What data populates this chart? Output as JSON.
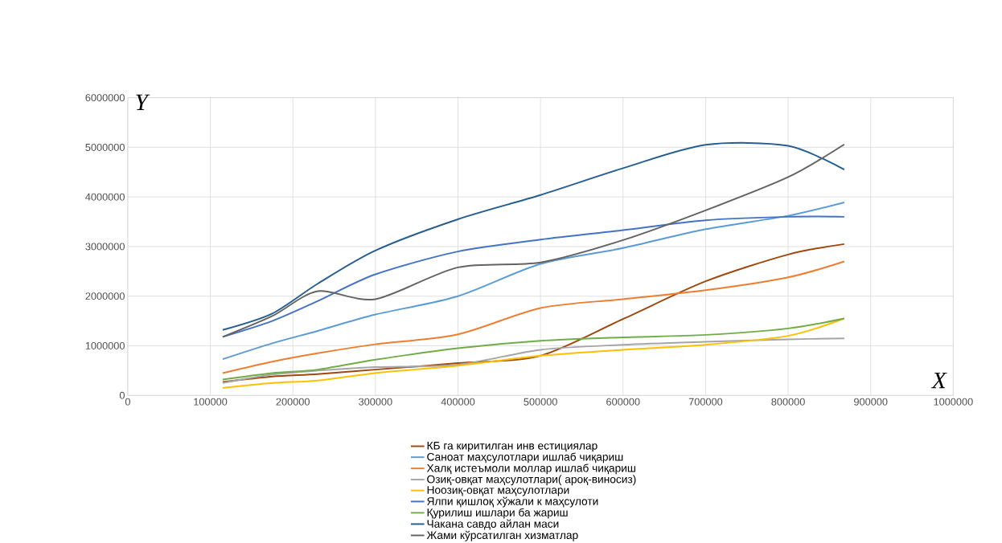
{
  "chart_data": {
    "type": "line",
    "xlabel": "X",
    "ylabel": "Y",
    "xlim": [
      0,
      1000000
    ],
    "ylim": [
      0,
      6000000
    ],
    "xticks": [
      0,
      100000,
      200000,
      300000,
      400000,
      500000,
      600000,
      700000,
      800000,
      900000,
      1000000
    ],
    "yticks": [
      0,
      1000000,
      2000000,
      3000000,
      4000000,
      5000000,
      6000000
    ],
    "grid": true,
    "legend": "bottom",
    "marker": "none",
    "line_style": "solid",
    "series": [
      {
        "name": "КБ га киритилган инв естициялар",
        "color": "#9e480e",
        "x": [
          115000,
          175000,
          230000,
          300000,
          400000,
          500000,
          600000,
          700000,
          800000,
          868000
        ],
        "values": [
          270000,
          380000,
          430000,
          520000,
          650000,
          800000,
          1540000,
          2300000,
          2840000,
          3050000
        ]
      },
      {
        "name": "Саноат маҳсулотлари ишлаб чиқариш",
        "color": "#5b9bd5",
        "x": [
          115000,
          175000,
          230000,
          300000,
          400000,
          500000,
          600000,
          700000,
          800000,
          868000
        ],
        "values": [
          730000,
          1050000,
          1300000,
          1630000,
          2000000,
          2650000,
          2970000,
          3350000,
          3620000,
          3890000
        ]
      },
      {
        "name": "Халқ истеъмоли моллар ишлаб чиқариш",
        "color": "#ed7d31",
        "x": [
          115000,
          175000,
          230000,
          300000,
          400000,
          500000,
          600000,
          700000,
          800000,
          868000
        ],
        "values": [
          450000,
          680000,
          850000,
          1030000,
          1230000,
          1760000,
          1940000,
          2120000,
          2380000,
          2700000
        ]
      },
      {
        "name": "Озиқ-овқат маҳсулотлари( ароқ-виносиз)",
        "color": "#a5a5a5",
        "x": [
          115000,
          175000,
          230000,
          300000,
          400000,
          500000,
          600000,
          700000,
          800000,
          868000
        ],
        "values": [
          250000,
          420000,
          500000,
          570000,
          620000,
          920000,
          1020000,
          1080000,
          1130000,
          1150000
        ]
      },
      {
        "name": "Ноозиқ-овқат маҳсулотлари",
        "color": "#ffc000",
        "x": [
          115000,
          175000,
          230000,
          300000,
          400000,
          500000,
          600000,
          700000,
          800000,
          868000
        ],
        "values": [
          150000,
          250000,
          300000,
          450000,
          600000,
          800000,
          920000,
          1020000,
          1200000,
          1550000
        ]
      },
      {
        "name": "Ялпи қишлоқ хўжали к маҳсулоти",
        "color": "#4472c4",
        "x": [
          115000,
          175000,
          230000,
          300000,
          400000,
          500000,
          600000,
          700000,
          800000,
          868000
        ],
        "values": [
          1180000,
          1500000,
          1900000,
          2440000,
          2900000,
          3140000,
          3330000,
          3530000,
          3600000,
          3600000
        ]
      },
      {
        "name": "Қурилиш ишлари ба жариш",
        "color": "#70ad47",
        "x": [
          115000,
          175000,
          230000,
          300000,
          400000,
          500000,
          600000,
          700000,
          800000,
          868000
        ],
        "values": [
          320000,
          450000,
          520000,
          720000,
          950000,
          1100000,
          1170000,
          1220000,
          1350000,
          1550000
        ]
      },
      {
        "name": "Чакана савдо айлан маси",
        "color": "#255e91",
        "x": [
          115000,
          175000,
          230000,
          300000,
          400000,
          500000,
          600000,
          700000,
          800000,
          868000
        ],
        "values": [
          1320000,
          1650000,
          2250000,
          2920000,
          3550000,
          4040000,
          4580000,
          5050000,
          5030000,
          4550000
        ]
      },
      {
        "name": "Жами кўрсатилган хизматлар",
        "color": "#636363",
        "x": [
          115000,
          175000,
          230000,
          300000,
          400000,
          500000,
          600000,
          700000,
          800000,
          868000
        ],
        "values": [
          1180000,
          1600000,
          2100000,
          1940000,
          2580000,
          2680000,
          3130000,
          3730000,
          4400000,
          5060000
        ]
      }
    ]
  }
}
